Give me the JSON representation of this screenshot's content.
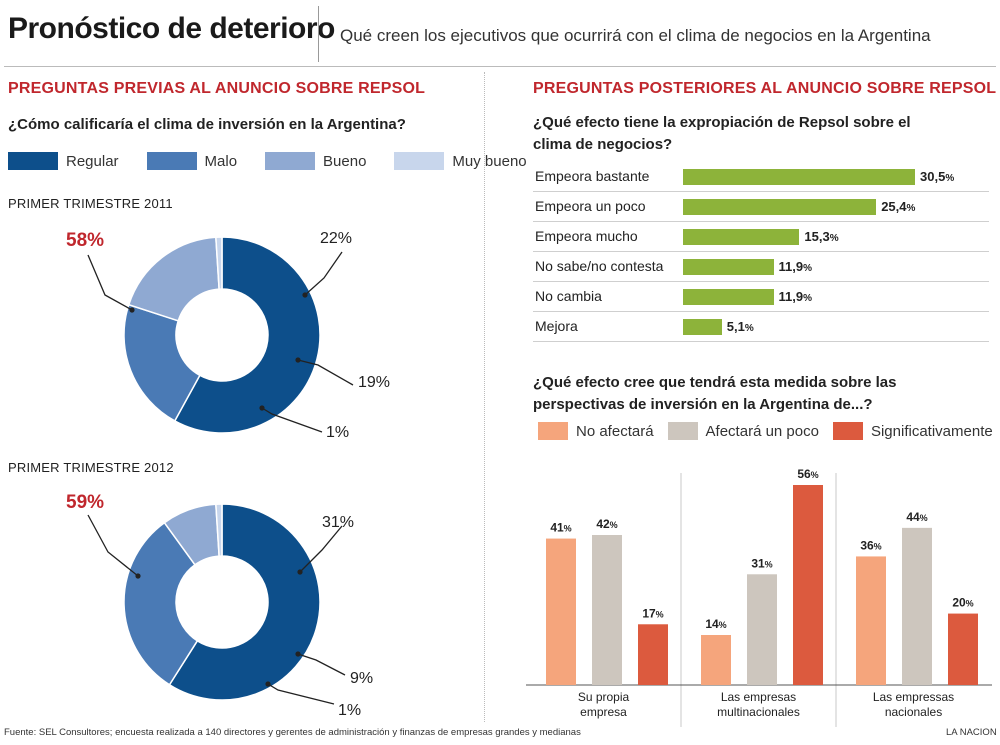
{
  "header": {
    "title": "Pronóstico de deterioro",
    "subtitle": "Qué creen los ejecutivos que ocurrirá con el clima de negocios en la Argentina"
  },
  "left": {
    "section_title": "PREGUNTAS PREVIAS AL ANUNCIO SOBRE REPSOL",
    "question": "¿Cómo calificaría el clima de inversión en la Argentina?",
    "legend": [
      {
        "label": "Regular",
        "color": "#0d4f8b"
      },
      {
        "label": "Malo",
        "color": "#4a7ab5"
      },
      {
        "label": "Bueno",
        "color": "#8fa9d2"
      },
      {
        "label": "Muy bueno",
        "color": "#c8d6ec"
      }
    ]
  },
  "right": {
    "section_title": "PREGUNTAS POSTERIORES AL ANUNCIO SOBRE REPSOL",
    "question1_line1": "¿Qué efecto tiene la expropiación de Repsol sobre el",
    "question1_line2": "clima de negocios?",
    "question2_line1": "¿Qué efecto cree que tendrá esta medida sobre las",
    "question2_line2": "perspectivas de inversión en la Argentina de...?",
    "legend": [
      {
        "label": "No afectará",
        "color": "#f5a57c"
      },
      {
        "label": "Afectará un poco",
        "color": "#cdc6be"
      },
      {
        "label": "Significativamente",
        "color": "#dc5a3e"
      }
    ]
  },
  "footer": {
    "source": "Fuente:  SEL Consultores; encuesta realizada a 140 directores y gerentes de administración  y finanzas de empresas grandes  y medianas",
    "credit": "LA NACION"
  },
  "chart_data": [
    {
      "type": "pie",
      "title": "PRIMER TRIMESTRE 2011",
      "categories": [
        "Regular",
        "Malo",
        "Bueno",
        "Muy bueno"
      ],
      "values": [
        58,
        22,
        19,
        1
      ],
      "labels": [
        "58%",
        "22%",
        "19%",
        "1%"
      ],
      "colors": [
        "#0d4f8b",
        "#4a7ab5",
        "#8fa9d2",
        "#c8d6ec"
      ]
    },
    {
      "type": "pie",
      "title": "PRIMER TRIMESTRE 2012",
      "categories": [
        "Regular",
        "Malo",
        "Bueno",
        "Muy bueno"
      ],
      "values": [
        59,
        31,
        9,
        1
      ],
      "labels": [
        "59%",
        "31%",
        "9%",
        "1%"
      ],
      "colors": [
        "#0d4f8b",
        "#4a7ab5",
        "#8fa9d2",
        "#c8d6ec"
      ]
    },
    {
      "type": "bar",
      "orientation": "horizontal",
      "categories": [
        "Empeora bastante",
        "Empeora un poco",
        "Empeora mucho",
        "No sabe/no contesta",
        "No cambia",
        "Mejora"
      ],
      "values": [
        30.5,
        25.4,
        15.3,
        11.9,
        11.9,
        5.1
      ],
      "value_labels": [
        "30,5",
        "25,4",
        "15,3",
        "11,9",
        "11,9",
        "5,1"
      ],
      "unit": "%",
      "color": "#8db33a"
    },
    {
      "type": "bar",
      "categories": [
        "Su propia empresa",
        "Las empresas multinacionales",
        "Las empressas nacionales"
      ],
      "category_lines": [
        [
          "Su propia",
          "empresa"
        ],
        [
          "Las empresas",
          "multinacionales"
        ],
        [
          "Las empressas",
          "nacionales"
        ]
      ],
      "series": [
        {
          "name": "No afectará",
          "values": [
            41,
            14,
            36
          ]
        },
        {
          "name": "Afectará un poco",
          "values": [
            42,
            31,
            44
          ]
        },
        {
          "name": "Significativamente",
          "values": [
            17,
            56,
            20
          ]
        }
      ],
      "unit": "%",
      "ylim": [
        0,
        60
      ]
    }
  ]
}
